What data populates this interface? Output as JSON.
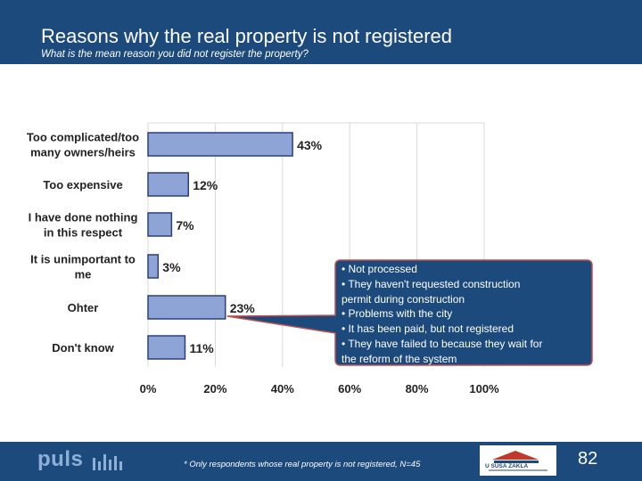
{
  "header": {
    "title": "Reasons why the real property is not registered",
    "subtitle": "What is the mean reason you did not register the property?"
  },
  "chart_data": {
    "type": "bar",
    "orientation": "horizontal",
    "categories": [
      [
        "Too complicated/too",
        "many owners/heirs"
      ],
      [
        "Too expensive"
      ],
      [
        "I have done nothing",
        "in this respect"
      ],
      [
        "It is unimportant to",
        "me"
      ],
      [
        "Ohter"
      ],
      [
        "Don't know"
      ]
    ],
    "values": [
      43,
      12,
      7,
      3,
      23,
      11
    ],
    "value_labels": [
      "43%",
      "12%",
      "7%",
      "3%",
      "23%",
      "11%"
    ],
    "x_ticks": [
      "0%",
      "20%",
      "40%",
      "60%",
      "80%",
      "100%"
    ],
    "xlim": [
      0,
      100
    ],
    "grid": true,
    "legend": "none",
    "colors": {
      "bar_fill": "#8ea3d6",
      "bar_stroke": "#2b3f7e",
      "grid": "#d9d9d9",
      "callout": "#1c4a7d"
    }
  },
  "callout": {
    "lines": [
      "• Not processed",
      "• They haven't requested construction",
      "  permit during construction",
      "• Problems with the city",
      "• It has been paid, but not registered",
      "• They have failed to because they wait for",
      "  the reform of the system"
    ]
  },
  "footer": {
    "logo_text": "puls",
    "footnote": "* Only respondents whose real property is not registered, N=45",
    "partner_logo_text": "U SUSA ZAKLA",
    "page_number": "82"
  }
}
